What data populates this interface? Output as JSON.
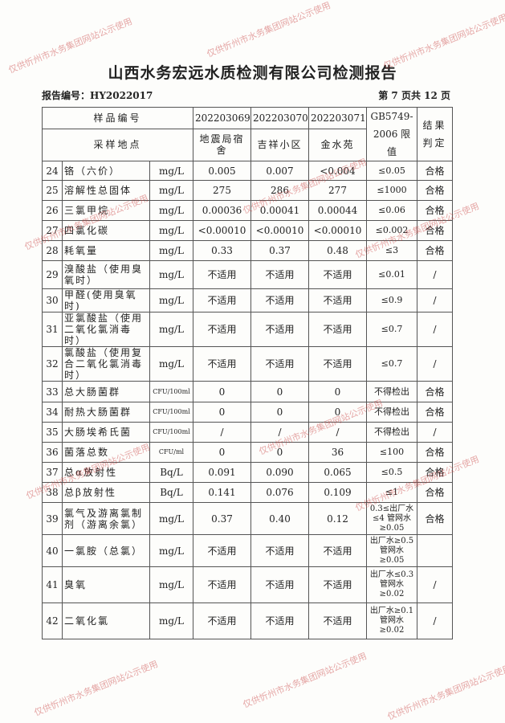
{
  "title": "山西水务宏远水质检测有限公司检测报告",
  "report_no": "报告编号：HY2022017",
  "page_info": "第 7 页共 12 页",
  "header": {
    "sample_no_label": "样品编号",
    "location_label": "采样地点",
    "samples": [
      "202203069",
      "202203070",
      "202203071"
    ],
    "locations": [
      "地震局宿舍",
      "吉祥小区",
      "金水苑"
    ],
    "limit_label": "GB5749-2006 限值",
    "result_label": "结果判定"
  },
  "rows": [
    {
      "no": "24",
      "name": "铬（六价）",
      "unit": "mg/L",
      "v1": "0.005",
      "v2": "0.007",
      "v3": "<0.004",
      "limit": "≤0.05",
      "result": "合格"
    },
    {
      "no": "25",
      "name": "溶解性总固体",
      "unit": "mg/L",
      "v1": "275",
      "v2": "286",
      "v3": "277",
      "limit": "≤1000",
      "result": "合格"
    },
    {
      "no": "26",
      "name": "三氯甲烷",
      "unit": "mg/L",
      "v1": "0.00036",
      "v2": "0.00041",
      "v3": "0.00044",
      "limit": "≤0.06",
      "result": "合格"
    },
    {
      "no": "27",
      "name": "四氯化碳",
      "unit": "mg/L",
      "v1": "<0.00010",
      "v2": "<0.00010",
      "v3": "<0.00010",
      "limit": "≤0.002",
      "result": "合格"
    },
    {
      "no": "28",
      "name": "耗氧量",
      "unit": "mg/L",
      "v1": "0.33",
      "v2": "0.37",
      "v3": "0.48",
      "limit": "≤3",
      "result": "合格"
    },
    {
      "no": "29",
      "name": "溴酸盐（使用臭氧时）",
      "unit": "mg/L",
      "v1": "不适用",
      "v2": "不适用",
      "v3": "不适用",
      "limit": "≤0.01",
      "result": "/"
    },
    {
      "no": "30",
      "name": "甲醛(使用臭氧时)",
      "unit": "mg/L",
      "v1": "不适用",
      "v2": "不适用",
      "v3": "不适用",
      "limit": "≤0.9",
      "result": "/"
    },
    {
      "no": "31",
      "name": "亚氯酸盐（使用二氧化氯消毒时）",
      "unit": "mg/L",
      "v1": "不适用",
      "v2": "不适用",
      "v3": "不适用",
      "limit": "≤0.7",
      "result": "/"
    },
    {
      "no": "32",
      "name": "氯酸盐（使用复合二氧化氯消毒时）",
      "unit": "mg/L",
      "v1": "不适用",
      "v2": "不适用",
      "v3": "不适用",
      "limit": "≤0.7",
      "result": "/"
    },
    {
      "no": "33",
      "name": "总大肠菌群",
      "unit": "CFU/100ml",
      "v1": "0",
      "v2": "0",
      "v3": "0",
      "limit": "不得检出",
      "result": "合格"
    },
    {
      "no": "34",
      "name": "耐热大肠菌群",
      "unit": "CFU/100ml",
      "v1": "0",
      "v2": "0",
      "v3": "0",
      "limit": "不得检出",
      "result": "合格"
    },
    {
      "no": "35",
      "name": "大肠埃希氏菌",
      "unit": "CFU/100ml",
      "v1": "/",
      "v2": "/",
      "v3": "/",
      "limit": "不得检出",
      "result": "/"
    },
    {
      "no": "36",
      "name": "菌落总数",
      "unit": "CFU/ml",
      "v1": "0",
      "v2": "0",
      "v3": "36",
      "limit": "≤100",
      "result": "合格"
    },
    {
      "no": "37",
      "name": "总α放射性",
      "unit": "Bq/L",
      "v1": "0.091",
      "v2": "0.090",
      "v3": "0.065",
      "limit": "≤0.5",
      "result": "合格"
    },
    {
      "no": "38",
      "name": "总β放射性",
      "unit": "Bq/L",
      "v1": "0.141",
      "v2": "0.076",
      "v3": "0.109",
      "limit": "≤1",
      "result": "合格"
    },
    {
      "no": "39",
      "name": "氯气及游离氯制剂（游离余氯）",
      "unit": "mg/L",
      "v1": "0.37",
      "v2": "0.40",
      "v3": "0.12",
      "limit": "0.3≤出厂水≤4 管网水≥0.05",
      "result": "合格"
    },
    {
      "no": "40",
      "name": "一氯胺（总氯）",
      "unit": "mg/L",
      "v1": "不适用",
      "v2": "不适用",
      "v3": "不适用",
      "limit": "出厂水≥0.5 管网水≥0.05",
      "result": ""
    },
    {
      "no": "41",
      "name": "臭氧",
      "unit": "mg/L",
      "v1": "不适用",
      "v2": "不适用",
      "v3": "不适用",
      "limit": "出厂水≤0.3 管网水≥0.02",
      "result": "/"
    },
    {
      "no": "42",
      "name": "二氧化氯",
      "unit": "mg/L",
      "v1": "不适用",
      "v2": "不适用",
      "v3": "不适用",
      "limit": "出厂水≥0.1 管网水≥0.02",
      "result": "/"
    }
  ],
  "watermark": "仅供忻州市水务集团网站公示使用",
  "colors": {
    "watermark": "#c83c3c",
    "border": "#555555"
  }
}
